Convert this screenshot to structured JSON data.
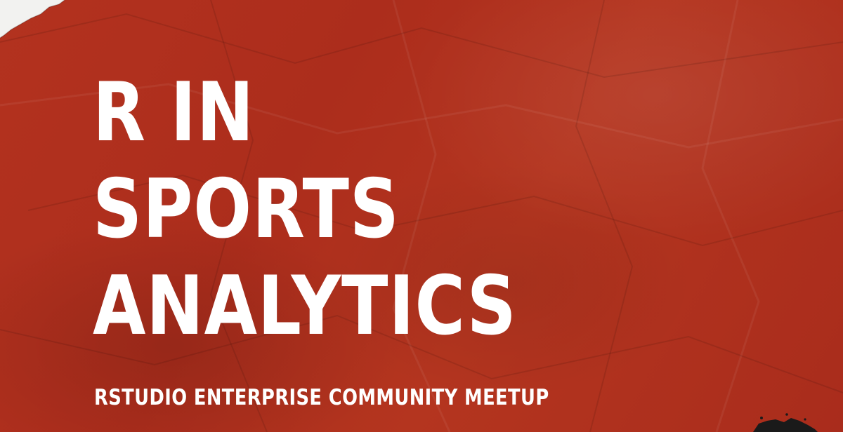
{
  "poster": {
    "title_lines": [
      "R IN",
      "SPORTS",
      "ANALYTICS"
    ],
    "subtitle": "RSTUDIO ENTERPRISE COMMUNITY MEETUP"
  },
  "colors": {
    "background": "#b02f1f",
    "text": "#ffffff",
    "torn_paper_corner": "#f2f2f0",
    "ink_splatter": "#1a1a1a"
  }
}
